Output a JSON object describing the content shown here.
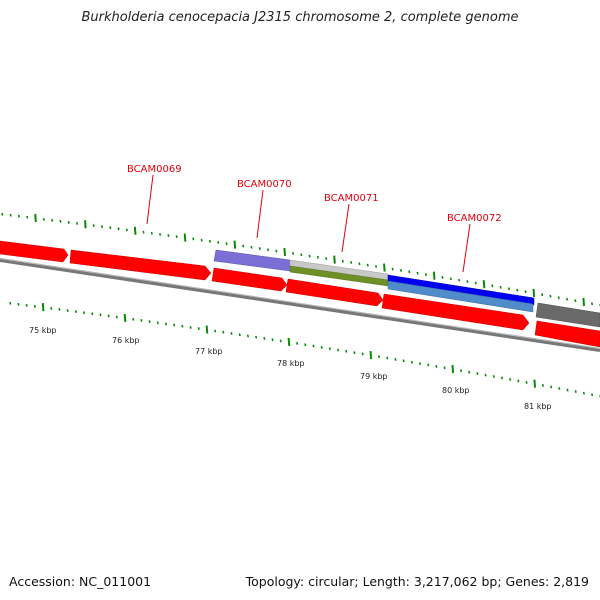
{
  "title": "Burkholderia cenocepacia J2315 chromosome 2, complete genome",
  "footer": {
    "accession": "Accession: NC_011001",
    "stats": "Topology: circular; Length: 3,217,062 bp; Genes: 2,819"
  },
  "colors": {
    "cds_red": "#ff0000",
    "backbone": "#777777",
    "tick_green": "#0a8a0a",
    "label_red": "#e0000b"
  },
  "gene_labels": [
    "BCAM0069",
    "BCAM0070",
    "BCAM0071",
    "BCAM0072"
  ],
  "scale_labels": [
    "75 kbp",
    "76 kbp",
    "77 kbp",
    "78 kbp",
    "79 kbp",
    "80 kbp",
    "81 kbp"
  ]
}
